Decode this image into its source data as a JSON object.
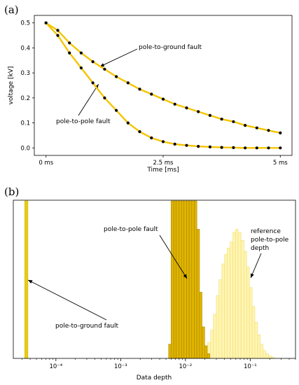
{
  "panels": [
    {
      "label": "(a)"
    },
    {
      "label": "(b)"
    }
  ],
  "chart_data": [
    {
      "type": "scatter",
      "title": "",
      "xlabel": "Time [ms]",
      "ylabel": "voltage [kV]",
      "xlim": [
        -0.25,
        5.25
      ],
      "ylim": [
        -0.03,
        0.53
      ],
      "x_ticks": [
        {
          "value": 0,
          "label": "0 ms"
        },
        {
          "value": 2.5,
          "label": "2.5 ms"
        },
        {
          "value": 5,
          "label": "5 ms"
        }
      ],
      "y_ticks": [
        0.0,
        0.1,
        0.2,
        0.3,
        0.4,
        0.5
      ],
      "y_tick_labels": [
        "0.0",
        "0.1",
        "0.2",
        "0.3",
        "0.4",
        "0.5"
      ],
      "grid": false,
      "series": [
        {
          "name": "pole-to-ground fault",
          "line_color": "#f5c400",
          "marker_color": "#000000",
          "x": [
            0,
            0.25,
            0.5,
            0.75,
            1.0,
            1.25,
            1.5,
            1.75,
            2.0,
            2.25,
            2.5,
            2.75,
            3.0,
            3.25,
            3.5,
            3.75,
            4.0,
            4.25,
            4.5,
            4.75,
            5.0
          ],
          "y": [
            0.5,
            0.47,
            0.42,
            0.38,
            0.345,
            0.315,
            0.285,
            0.26,
            0.235,
            0.215,
            0.195,
            0.175,
            0.16,
            0.145,
            0.13,
            0.115,
            0.105,
            0.09,
            0.08,
            0.07,
            0.06
          ]
        },
        {
          "name": "pole-to-pole fault",
          "line_color": "#f5c400",
          "marker_color": "#000000",
          "x": [
            0,
            0.25,
            0.5,
            0.75,
            1.0,
            1.25,
            1.5,
            1.75,
            2.0,
            2.25,
            2.5,
            2.75,
            3.0,
            3.25,
            3.5,
            3.75,
            4.0,
            4.25,
            4.5,
            4.75,
            5.0
          ],
          "y": [
            0.5,
            0.45,
            0.38,
            0.32,
            0.26,
            0.2,
            0.15,
            0.1,
            0.065,
            0.04,
            0.025,
            0.015,
            0.01,
            0.006,
            0.004,
            0.002,
            0.001,
            0.0,
            0.0,
            0.0,
            0.0
          ]
        }
      ],
      "annotations": [
        {
          "text": "pole-to-ground fault",
          "target_series": "pole-to-ground fault"
        },
        {
          "text": "pole-to-pole fault",
          "target_series": "pole-to-pole fault"
        }
      ]
    },
    {
      "type": "histogram",
      "title": "",
      "xlabel": "Data depth",
      "ylabel": "",
      "x_scale": "log",
      "xlim": [
        2.2e-05,
        0.5
      ],
      "x_ticks": [
        0.0001,
        0.001,
        0.01,
        0.1
      ],
      "x_tick_labels": [
        "10⁻⁴",
        "10⁻³",
        "10⁻²",
        "10⁻¹"
      ],
      "grid": false,
      "series": [
        {
          "name": "pole-to-ground fault",
          "color": "#e6cc1a",
          "bin_edges": [
            3.3e-05,
            3.7e-05
          ],
          "counts": [
            1.0
          ]
        },
        {
          "name": "pole-to-pole fault",
          "color": "#e0b400",
          "bin_edges": [
            0.0055,
            0.006,
            0.0066,
            0.0072,
            0.0079,
            0.0087,
            0.0095,
            0.0104,
            0.0114,
            0.0125,
            0.0137,
            0.015,
            0.0165,
            0.018,
            0.0198,
            0.0217,
            0.0238
          ],
          "counts": [
            0.09,
            1.0,
            1.0,
            1.0,
            1.0,
            1.0,
            1.0,
            1.0,
            1.0,
            1.0,
            1.0,
            0.82,
            0.42,
            0.2,
            0.08,
            0.03
          ]
        },
        {
          "name": "reference pole-to-pole depth",
          "color": "#fff5b3",
          "bin_edges": [
            0.018,
            0.02,
            0.022,
            0.0245,
            0.027,
            0.03,
            0.033,
            0.0365,
            0.04,
            0.044,
            0.049,
            0.054,
            0.059,
            0.065,
            0.072,
            0.08,
            0.088,
            0.097,
            0.107,
            0.118,
            0.13,
            0.143,
            0.158,
            0.174,
            0.192,
            0.212,
            0.234
          ],
          "counts": [
            0.02,
            0.05,
            0.1,
            0.18,
            0.28,
            0.4,
            0.5,
            0.6,
            0.66,
            0.7,
            0.74,
            0.8,
            0.82,
            0.8,
            0.75,
            0.68,
            0.58,
            0.45,
            0.33,
            0.23,
            0.15,
            0.09,
            0.05,
            0.03,
            0.015,
            0.008
          ]
        }
      ],
      "annotations": [
        {
          "text": "pole-to-pole fault",
          "target_series": "pole-to-pole fault"
        },
        {
          "text": "pole-to-ground fault",
          "target_series": "pole-to-ground fault"
        },
        {
          "text": "reference pole-to-pole depth",
          "lines": [
            "reference",
            "pole-to-pole",
            "depth"
          ],
          "target_series": "reference pole-to-pole depth"
        }
      ]
    }
  ]
}
